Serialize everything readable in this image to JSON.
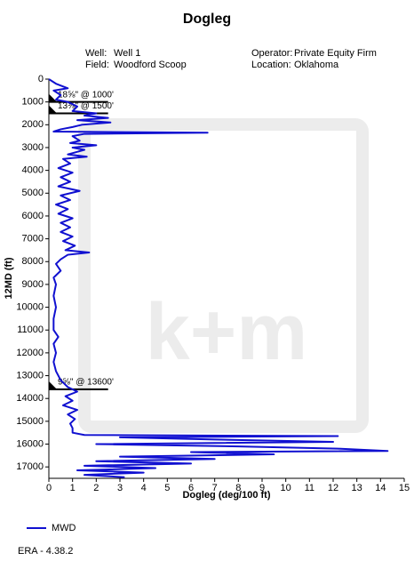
{
  "chart_data": {
    "type": "line",
    "title": "Dogleg",
    "info": [
      {
        "label": "Well:",
        "value": "Well 1"
      },
      {
        "label": "Field:",
        "value": "Woodford Scoop"
      },
      {
        "label": "Operator:",
        "value": "Private Equity Firm"
      },
      {
        "label": "Location:",
        "value": "Oklahoma"
      }
    ],
    "x_label": "Dogleg (deg/100 ft)",
    "y_label": "12MD (ft)",
    "xlim": [
      0,
      15
    ],
    "xticks": [
      0,
      1,
      2,
      3,
      4,
      5,
      6,
      7,
      8,
      9,
      10,
      11,
      12,
      13,
      14,
      15
    ],
    "ylim": [
      0,
      17500
    ],
    "yticks": [
      0,
      1000,
      2000,
      3000,
      4000,
      5000,
      6000,
      7000,
      8000,
      9000,
      10000,
      11000,
      12000,
      13000,
      14000,
      15000,
      16000,
      17000
    ],
    "y_inverted": true,
    "grid": false,
    "casings": [
      {
        "label": "18⅝\" @ 1000'",
        "depth": 1000
      },
      {
        "label": "13⅜\" @ 1500'",
        "depth": 1500
      },
      {
        "label": "9⅝\" @ 13600'",
        "depth": 13600
      }
    ],
    "series": [
      {
        "name": "MWD",
        "color": "#1010d0",
        "depth": [
          0,
          200,
          400,
          500,
          700,
          900,
          1000,
          1200,
          1400,
          1500,
          1600,
          1700,
          1800,
          1900,
          2000,
          2100,
          2200,
          2300,
          2350,
          2400,
          2500,
          2700,
          2800,
          2900,
          3000,
          3100,
          3300,
          3400,
          3500,
          3700,
          3900,
          4100,
          4300,
          4500,
          4700,
          4900,
          5100,
          5300,
          5500,
          5700,
          5900,
          6100,
          6300,
          6500,
          6700,
          6900,
          7100,
          7300,
          7500,
          7600,
          7700,
          7900,
          8100,
          8400,
          8700,
          9000,
          9500,
          10000,
          10500,
          11000,
          11300,
          11600,
          12000,
          12400,
          12800,
          13200,
          13500,
          13700,
          13900,
          14100,
          14300,
          14500,
          14700,
          14900,
          15100,
          15300,
          15500,
          15600,
          15650,
          15700,
          15800,
          15900,
          16000,
          16100,
          16200,
          16300,
          16350,
          16450,
          16550,
          16650,
          16750,
          16850,
          16950,
          17050,
          17150,
          17250,
          17350,
          17450
        ],
        "values": [
          0,
          0.3,
          0.8,
          0.2,
          0.5,
          0.3,
          0.8,
          1.2,
          1.0,
          2.0,
          1.5,
          2.5,
          1.2,
          2.6,
          1.4,
          1.0,
          0.5,
          0.2,
          6.7,
          1.5,
          1.0,
          1.3,
          0.9,
          2.0,
          1.0,
          1.5,
          0.8,
          1.6,
          0.6,
          0.9,
          0.4,
          1.0,
          0.5,
          0.9,
          0.4,
          1.3,
          0.5,
          0.9,
          0.3,
          0.8,
          0.4,
          1.0,
          0.5,
          0.9,
          0.5,
          1.0,
          0.6,
          1.1,
          0.7,
          1.7,
          0.8,
          0.5,
          0.3,
          0.5,
          0.2,
          0.3,
          0.2,
          0.3,
          0.2,
          0.2,
          0.4,
          0.2,
          0.3,
          0.2,
          0.3,
          0.5,
          0.8,
          1.2,
          0.7,
          1.0,
          0.6,
          1.2,
          0.8,
          1.1,
          0.9,
          1.0,
          1.0,
          1.5,
          12.2,
          3,
          7,
          12,
          2,
          8,
          12.2,
          14.3,
          6,
          9.5,
          3,
          7,
          2,
          6,
          1.5,
          4.5,
          1.2,
          4,
          1.5,
          3.2
        ]
      }
    ],
    "watermark": "k+m",
    "footer": "ERA - 4.38.2"
  }
}
